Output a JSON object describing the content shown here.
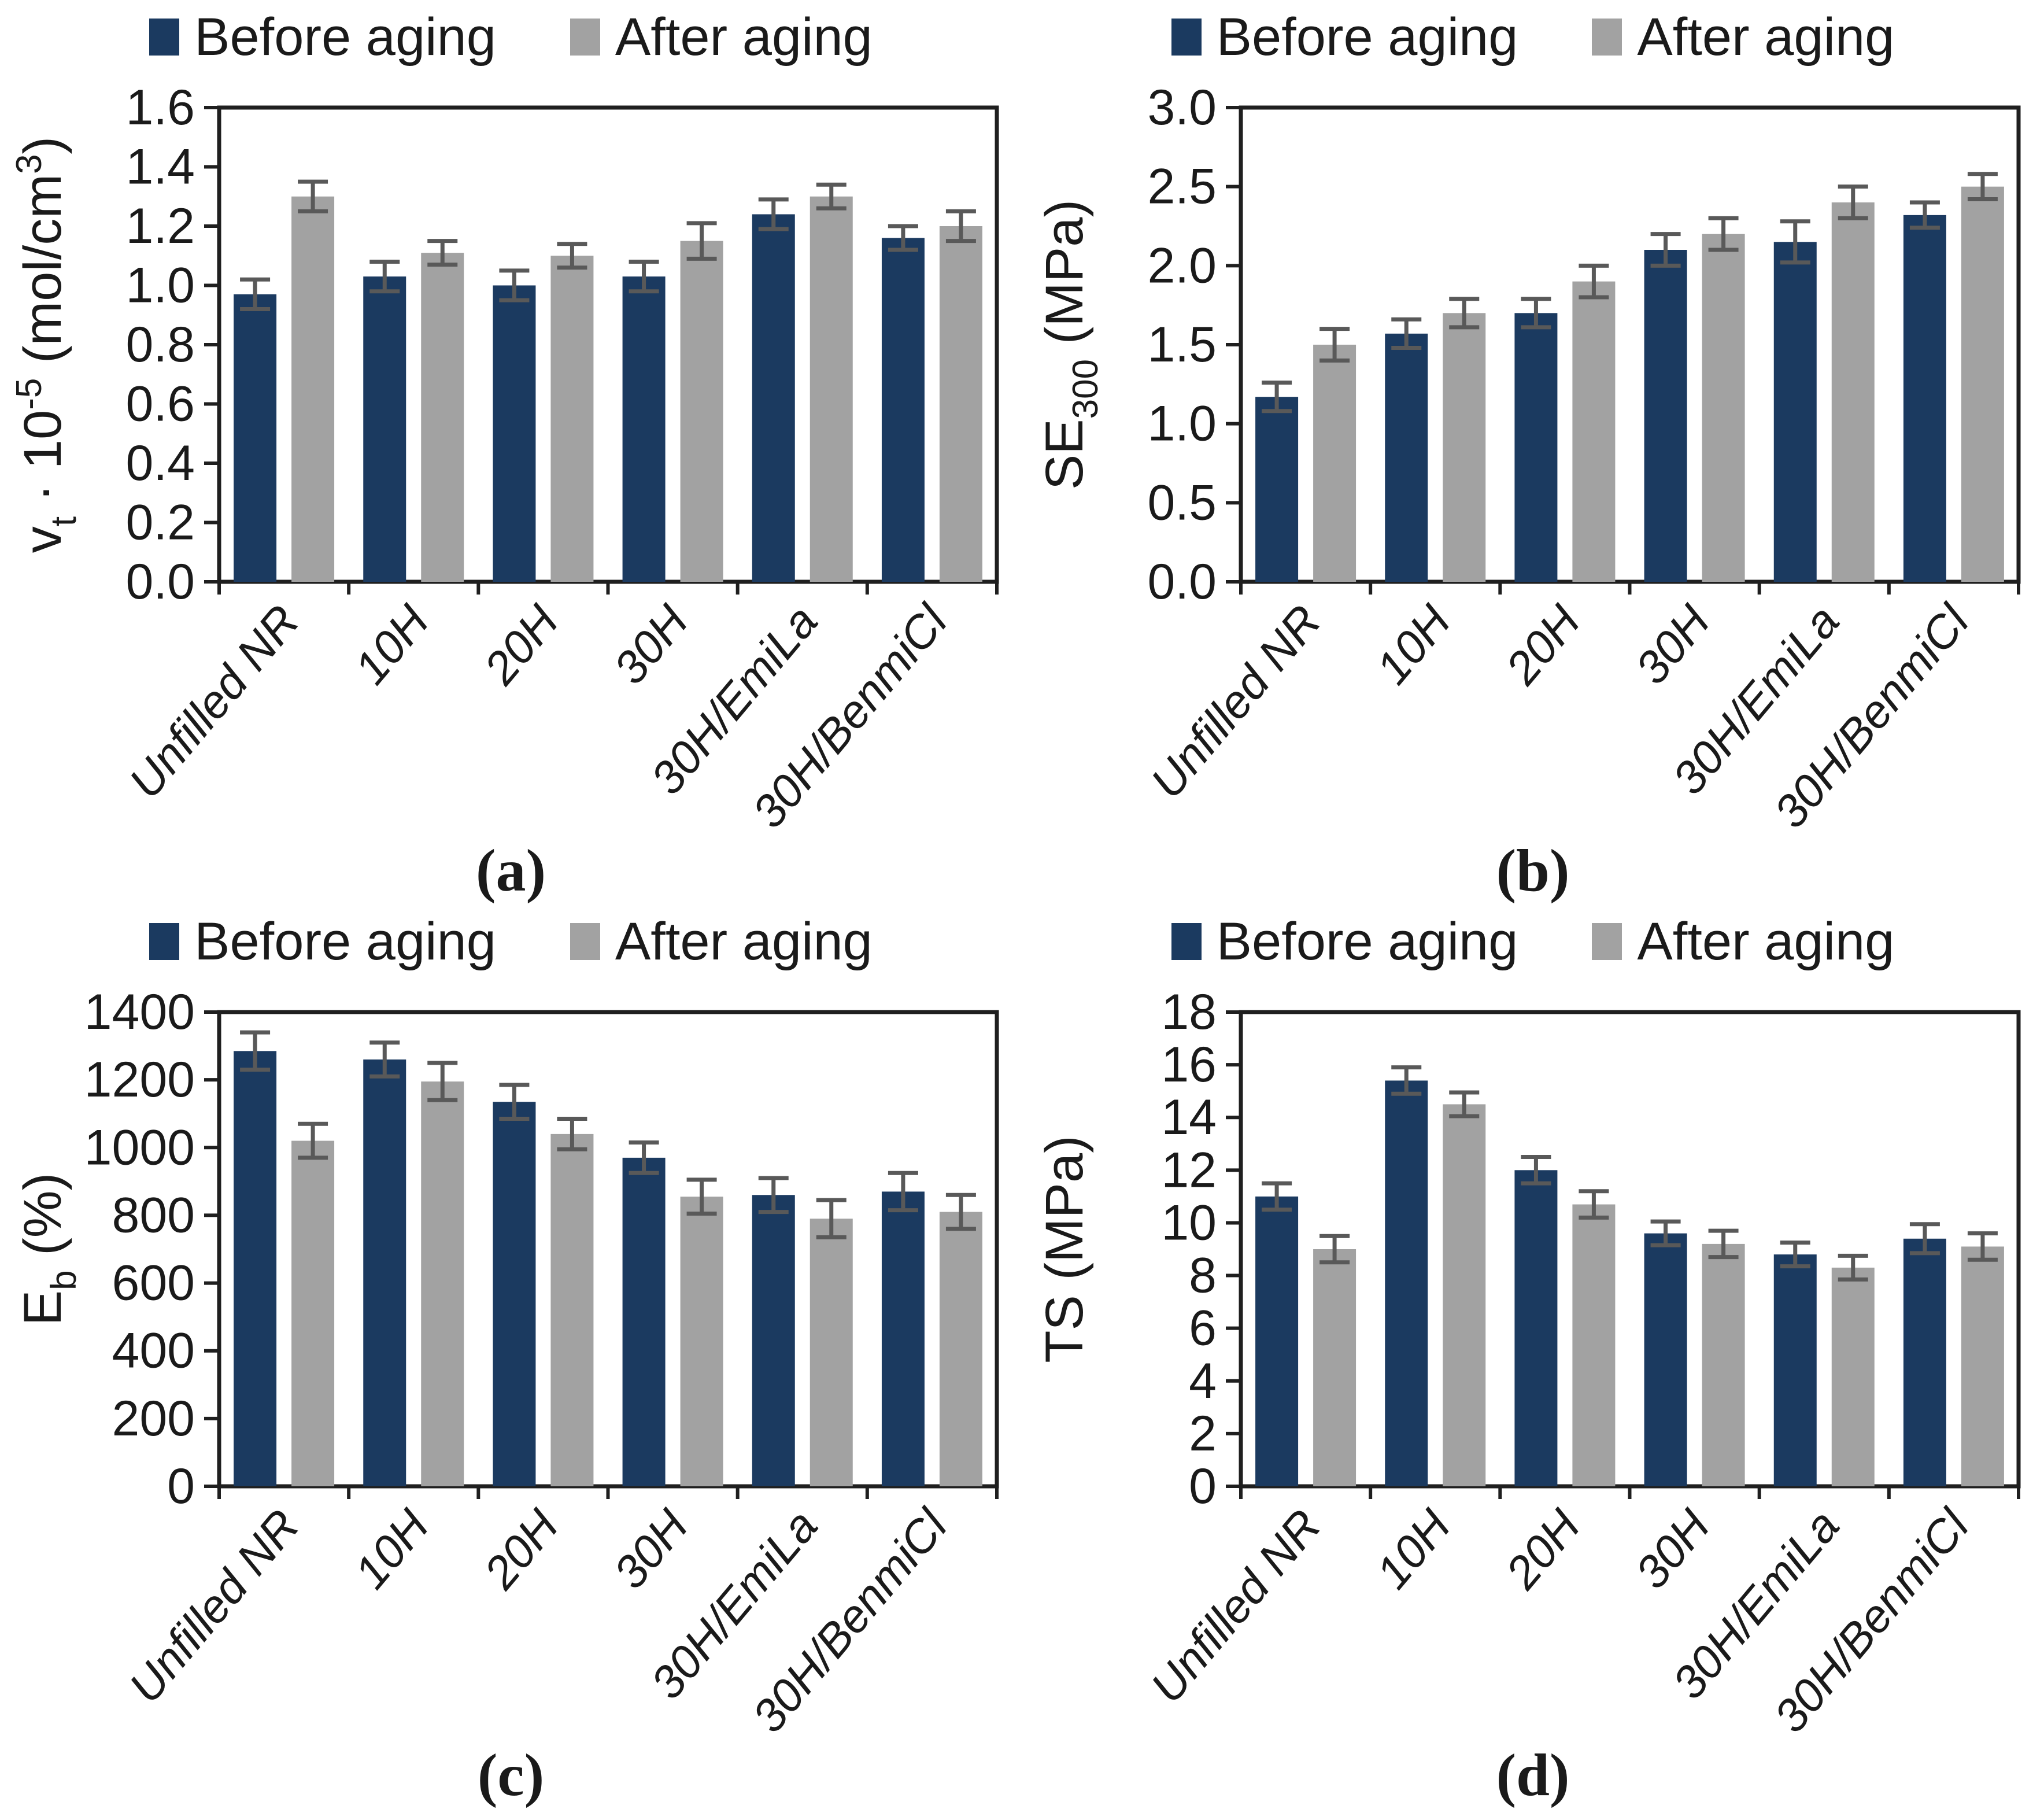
{
  "colors": {
    "before": "#1b3a60",
    "after": "#a2a2a2",
    "error": "#595959",
    "axis": "#1f1f1f",
    "text": "#1a1a1a"
  },
  "legend": {
    "before_label": "Before aging",
    "after_label": "After aging"
  },
  "chart_data": [
    {
      "id": "a",
      "caption": "(a)",
      "type": "bar",
      "grid": false,
      "legend_position": "top",
      "ylabel": "vt · 10-5 (mol/cm3)",
      "ylabel_rich": [
        {
          "t": "v"
        },
        {
          "t": "t",
          "sub": true
        },
        {
          "t": " · 10"
        },
        {
          "t": "-5",
          "sup": true
        },
        {
          "t": " (mol/cm"
        },
        {
          "t": "3",
          "sup": true
        },
        {
          "t": ")"
        }
      ],
      "ylim": [
        0,
        1.6
      ],
      "ystep": 0.2,
      "ydecimals": 1,
      "categories": [
        "Unfilled NR",
        "10H",
        "20H",
        "30H",
        "30H/EmiLa",
        "30H/BenmiCl"
      ],
      "series": [
        {
          "name": "Before aging",
          "color_key": "before",
          "values": [
            0.97,
            1.03,
            1.0,
            1.03,
            1.24,
            1.16
          ],
          "errors": [
            0.05,
            0.05,
            0.05,
            0.05,
            0.05,
            0.04
          ]
        },
        {
          "name": "After aging",
          "color_key": "after",
          "values": [
            1.3,
            1.11,
            1.1,
            1.15,
            1.3,
            1.2
          ],
          "errors": [
            0.05,
            0.04,
            0.04,
            0.06,
            0.04,
            0.05
          ]
        }
      ]
    },
    {
      "id": "b",
      "caption": "(b)",
      "type": "bar",
      "grid": false,
      "legend_position": "top",
      "ylabel": "SE300 (MPa)",
      "ylabel_rich": [
        {
          "t": "SE"
        },
        {
          "t": "300",
          "sub": true
        },
        {
          "t": " (MPa)"
        }
      ],
      "ylim": [
        0,
        3.0
      ],
      "ystep": 0.5,
      "ydecimals": 1,
      "categories": [
        "Unfilled NR",
        "10H",
        "20H",
        "30H",
        "30H/EmiLa",
        "30H/BenmiCl"
      ],
      "series": [
        {
          "name": "Before aging",
          "color_key": "before",
          "values": [
            1.17,
            1.57,
            1.7,
            2.1,
            2.15,
            2.32
          ],
          "errors": [
            0.09,
            0.09,
            0.09,
            0.1,
            0.13,
            0.08
          ]
        },
        {
          "name": "After aging",
          "color_key": "after",
          "values": [
            1.5,
            1.7,
            1.9,
            2.2,
            2.4,
            2.5
          ],
          "errors": [
            0.1,
            0.09,
            0.1,
            0.1,
            0.1,
            0.08
          ]
        }
      ]
    },
    {
      "id": "c",
      "caption": "(c)",
      "type": "bar",
      "grid": false,
      "legend_position": "top",
      "ylabel": "Eb (%)",
      "ylabel_rich": [
        {
          "t": "E"
        },
        {
          "t": "b",
          "sub": true
        },
        {
          "t": " (%)"
        }
      ],
      "ylim": [
        0,
        1400
      ],
      "ystep": 200,
      "ydecimals": 0,
      "categories": [
        "Unfilled NR",
        "10H",
        "20H",
        "30H",
        "30H/EmiLa",
        "30H/BenmiCl"
      ],
      "series": [
        {
          "name": "Before aging",
          "color_key": "before",
          "values": [
            1285,
            1260,
            1135,
            970,
            860,
            870
          ],
          "errors": [
            55,
            50,
            50,
            45,
            50,
            55
          ]
        },
        {
          "name": "After aging",
          "color_key": "after",
          "values": [
            1020,
            1195,
            1040,
            855,
            790,
            810
          ],
          "errors": [
            50,
            55,
            45,
            50,
            55,
            50
          ]
        }
      ]
    },
    {
      "id": "d",
      "caption": "(d)",
      "type": "bar",
      "grid": false,
      "legend_position": "top",
      "ylabel": "TS (MPa)",
      "ylabel_rich": [
        {
          "t": "TS (MPa)"
        }
      ],
      "ylim": [
        0,
        18
      ],
      "ystep": 2,
      "ydecimals": 0,
      "categories": [
        "Unfilled NR",
        "10H",
        "20H",
        "30H",
        "30H/EmiLa",
        "30H/BenmiCl"
      ],
      "series": [
        {
          "name": "Before aging",
          "color_key": "before",
          "values": [
            11.0,
            15.4,
            12.0,
            9.6,
            8.8,
            9.4
          ],
          "errors": [
            0.5,
            0.5,
            0.5,
            0.45,
            0.45,
            0.55
          ]
        },
        {
          "name": "After aging",
          "color_key": "after",
          "values": [
            9.0,
            14.5,
            10.7,
            9.2,
            8.3,
            9.1
          ],
          "errors": [
            0.5,
            0.45,
            0.5,
            0.5,
            0.45,
            0.5
          ]
        }
      ]
    }
  ]
}
